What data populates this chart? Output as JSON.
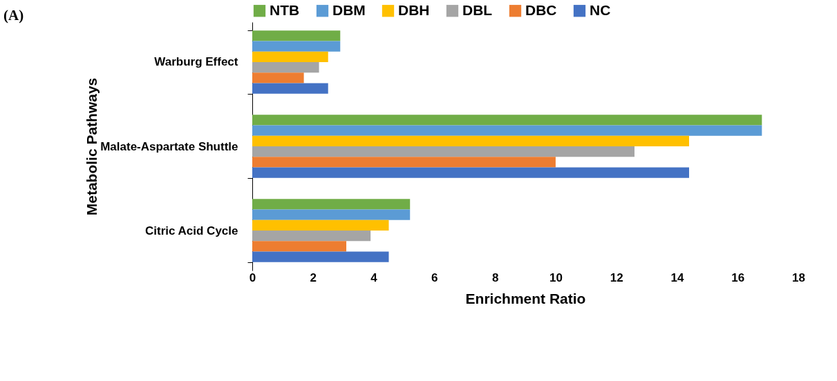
{
  "chart_data": {
    "type": "bar",
    "orientation": "horizontal",
    "title": "(A)",
    "xlabel": "Enrichment Ratio",
    "ylabel": "Metabolic Pathways",
    "categories": [
      "Warburg Effect",
      "Malate-Aspartate Shuttle",
      "Citric Acid Cycle"
    ],
    "series": [
      {
        "name": "NTB",
        "color": "#70ad47",
        "values": [
          2.9,
          16.8,
          5.2
        ]
      },
      {
        "name": "DBM",
        "color": "#5b9bd5",
        "values": [
          2.9,
          16.8,
          5.2
        ]
      },
      {
        "name": "DBH",
        "color": "#ffc000",
        "values": [
          2.5,
          14.4,
          4.5
        ]
      },
      {
        "name": "DBL",
        "color": "#a5a5a5",
        "values": [
          2.2,
          12.6,
          3.9
        ]
      },
      {
        "name": "DBC",
        "color": "#ed7d31",
        "values": [
          1.7,
          10.0,
          3.1
        ]
      },
      {
        "name": "NC",
        "color": "#4472c4",
        "values": [
          2.5,
          14.4,
          4.5
        ]
      }
    ],
    "xlim": [
      0,
      18
    ],
    "xticks": [
      0,
      2,
      4,
      6,
      8,
      10,
      12,
      14,
      16,
      18
    ],
    "grid": false,
    "legend": "top"
  }
}
